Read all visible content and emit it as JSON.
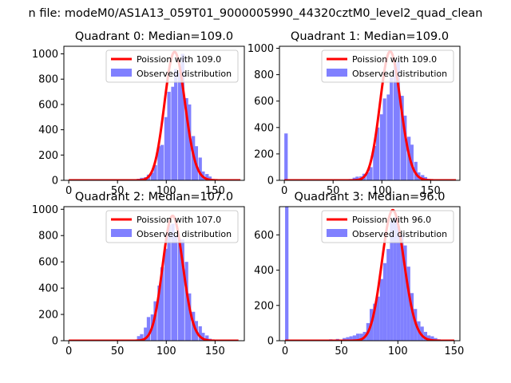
{
  "figure": {
    "suptitle": "n file: modeM0/AS1A13_059T01_9000005990_44320cztM0_level2_quad_clean"
  },
  "chart_data": [
    {
      "type": "bar",
      "title": "Quadrant 0: Median=109.0",
      "xlim": [
        -5,
        180
      ],
      "ylim": [
        0,
        1060
      ],
      "xticks": [
        0,
        50,
        100,
        150
      ],
      "yticks": [
        0,
        200,
        400,
        600,
        800,
        1000
      ],
      "legend_position": "upper-right",
      "series": [
        {
          "name": "Poission with 109.0",
          "kind": "line",
          "color": "#ff0000",
          "lambda": 109.0,
          "peak": 1015,
          "x_range": [
            0,
            176
          ]
        },
        {
          "name": "Observed distribution",
          "kind": "histogram",
          "color": "#8080ff",
          "bin_width": 3.5,
          "bins": [
            [
              42,
              8
            ],
            [
              52,
              5
            ],
            [
              63,
              5
            ],
            [
              66,
              8
            ],
            [
              70,
              12
            ],
            [
              73,
              20
            ],
            [
              77,
              25
            ],
            [
              80,
              45
            ],
            [
              84,
              60
            ],
            [
              87,
              120
            ],
            [
              91,
              270
            ],
            [
              94,
              280
            ],
            [
              98,
              500
            ],
            [
              101,
              700
            ],
            [
              105,
              740
            ],
            [
              108,
              880
            ],
            [
              112,
              850
            ],
            [
              115,
              1000
            ],
            [
              119,
              650
            ],
            [
              122,
              600
            ],
            [
              126,
              350
            ],
            [
              129,
              270
            ],
            [
              133,
              180
            ],
            [
              136,
              70
            ],
            [
              140,
              50
            ],
            [
              143,
              30
            ],
            [
              147,
              10
            ],
            [
              150,
              5
            ]
          ]
        }
      ]
    },
    {
      "type": "bar",
      "title": "Quadrant 1: Median=109.0",
      "xlim": [
        -5,
        180
      ],
      "ylim": [
        0,
        1015
      ],
      "xticks": [
        0,
        50,
        100,
        150
      ],
      "yticks": [
        0,
        200,
        400,
        600,
        800,
        1000
      ],
      "legend_position": "upper-right",
      "series": [
        {
          "name": "Poission with 109.0",
          "kind": "line",
          "color": "#ff0000",
          "lambda": 109.0,
          "peak": 975,
          "x_range": [
            0,
            176
          ]
        },
        {
          "name": "Observed distribution",
          "kind": "histogram",
          "color": "#8080ff",
          "bin_width": 3.5,
          "bins": [
            [
              0,
              355
            ],
            [
              10,
              5
            ],
            [
              45,
              5
            ],
            [
              56,
              5
            ],
            [
              66,
              10
            ],
            [
              70,
              20
            ],
            [
              73,
              28
            ],
            [
              77,
              30
            ],
            [
              80,
              50
            ],
            [
              84,
              60
            ],
            [
              87,
              100
            ],
            [
              91,
              260
            ],
            [
              94,
              400
            ],
            [
              98,
              500
            ],
            [
              101,
              620
            ],
            [
              105,
              650
            ],
            [
              108,
              780
            ],
            [
              112,
              880
            ],
            [
              115,
              900
            ],
            [
              119,
              640
            ],
            [
              122,
              490
            ],
            [
              126,
              330
            ],
            [
              129,
              270
            ],
            [
              133,
              140
            ],
            [
              136,
              60
            ],
            [
              140,
              40
            ],
            [
              143,
              25
            ],
            [
              147,
              10
            ],
            [
              150,
              5
            ]
          ]
        }
      ]
    },
    {
      "type": "bar",
      "title": "Quadrant 2: Median=107.0",
      "xlim": [
        -5,
        180
      ],
      "ylim": [
        0,
        1020
      ],
      "xticks": [
        0,
        50,
        100,
        150
      ],
      "yticks": [
        0,
        200,
        400,
        600,
        800,
        1000
      ],
      "legend_position": "upper-right",
      "series": [
        {
          "name": "Poission with 107.0",
          "kind": "line",
          "color": "#ff0000",
          "lambda": 107.0,
          "peak": 950,
          "x_range": [
            0,
            174
          ]
        },
        {
          "name": "Observed distribution",
          "kind": "histogram",
          "color": "#8080ff",
          "bin_width": 3.5,
          "bins": [
            [
              56,
              5
            ],
            [
              63,
              5
            ],
            [
              66,
              8
            ],
            [
              70,
              35
            ],
            [
              73,
              50
            ],
            [
              77,
              100
            ],
            [
              80,
              180
            ],
            [
              84,
              200
            ],
            [
              87,
              300
            ],
            [
              91,
              420
            ],
            [
              94,
              560
            ],
            [
              98,
              700
            ],
            [
              101,
              880
            ],
            [
              105,
              890
            ],
            [
              108,
              800
            ],
            [
              112,
              770
            ],
            [
              115,
              770
            ],
            [
              119,
              600
            ],
            [
              122,
              360
            ],
            [
              126,
              220
            ],
            [
              129,
              150
            ],
            [
              133,
              110
            ],
            [
              136,
              60
            ],
            [
              140,
              40
            ],
            [
              143,
              15
            ],
            [
              147,
              5
            ]
          ]
        }
      ]
    },
    {
      "type": "bar",
      "title": "Quadrant 3: Median=96.0",
      "xlim": [
        -5,
        155
      ],
      "ylim": [
        0,
        760
      ],
      "xticks": [
        0,
        50,
        100,
        150
      ],
      "yticks": [
        0,
        200,
        400,
        600
      ],
      "legend_position": "upper-right",
      "series": [
        {
          "name": "Poission with 96.0",
          "kind": "line",
          "color": "#ff0000",
          "lambda": 96.0,
          "peak": 740,
          "x_range": [
            0,
            150
          ]
        },
        {
          "name": "Observed distribution",
          "kind": "histogram",
          "color": "#8080ff",
          "bin_width": 3,
          "bins": [
            [
              0,
              760
            ],
            [
              15,
              5
            ],
            [
              25,
              3
            ],
            [
              30,
              5
            ],
            [
              39,
              8
            ],
            [
              45,
              10
            ],
            [
              51,
              15
            ],
            [
              54,
              20
            ],
            [
              57,
              25
            ],
            [
              60,
              30
            ],
            [
              63,
              40
            ],
            [
              66,
              40
            ],
            [
              69,
              50
            ],
            [
              72,
              100
            ],
            [
              75,
              180
            ],
            [
              78,
              210
            ],
            [
              81,
              250
            ],
            [
              84,
              350
            ],
            [
              87,
              440
            ],
            [
              90,
              520
            ],
            [
              93,
              680
            ],
            [
              96,
              700
            ],
            [
              99,
              650
            ],
            [
              102,
              600
            ],
            [
              105,
              540
            ],
            [
              108,
              420
            ],
            [
              111,
              270
            ],
            [
              114,
              180
            ],
            [
              117,
              110
            ],
            [
              120,
              80
            ],
            [
              123,
              50
            ],
            [
              126,
              30
            ],
            [
              129,
              25
            ],
            [
              132,
              15
            ],
            [
              135,
              8
            ],
            [
              138,
              5
            ]
          ]
        }
      ]
    }
  ]
}
